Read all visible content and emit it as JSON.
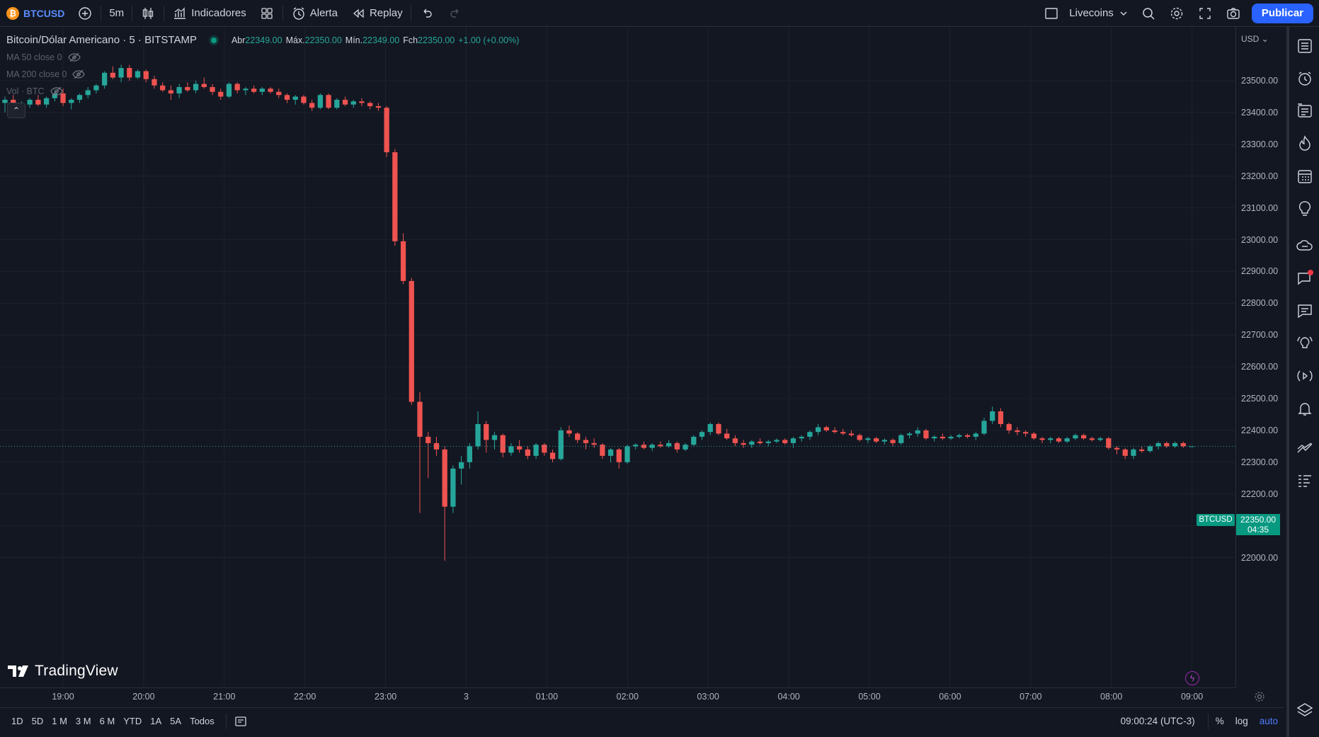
{
  "toolbar": {
    "symbol": "BTCUSD",
    "symbol_logo": "₿",
    "interval": "5m",
    "indicators_label": "Indicadores",
    "alert_label": "Alerta",
    "replay_label": "Replay",
    "layout_name": "Livecoins",
    "publish_label": "Publicar"
  },
  "legend": {
    "title": "Bitcoin/Dólar Americano · 5 · BITSTAMP",
    "open_label": "Abr",
    "open": "22349.00",
    "high_label": "Máx.",
    "high": "22350.00",
    "low_label": "Mín.",
    "low": "22349.00",
    "close_label": "Fch",
    "close": "22350.00",
    "change": "+1.00 (+0.00%)",
    "indicators": [
      "MA 50 close 0",
      "MA 200 close 0",
      "Vol · BTC"
    ]
  },
  "price_axis": {
    "currency": "USD",
    "ticks": [
      "23500.00",
      "23400.00",
      "23300.00",
      "23200.00",
      "23100.00",
      "23000.00",
      "22900.00",
      "22800.00",
      "22700.00",
      "22600.00",
      "22500.00",
      "22400.00",
      "22300.00",
      "22200.00",
      "22100.00",
      "22000.00"
    ],
    "current_symbol": "BTCUSD",
    "current_price": "22350.00",
    "countdown": "04:35"
  },
  "time_axis": {
    "ticks": [
      "19:00",
      "20:00",
      "21:00",
      "22:00",
      "23:00",
      "3",
      "01:00",
      "02:00",
      "03:00",
      "04:00",
      "05:00",
      "06:00",
      "07:00",
      "08:00",
      "09:00"
    ]
  },
  "bottom": {
    "ranges": [
      "1D",
      "5D",
      "1 M",
      "3 M",
      "6 M",
      "YTD",
      "1A",
      "5A",
      "Todos"
    ],
    "clock": "09:00:24 (UTC-3)",
    "percent": "%",
    "log": "log",
    "auto": "auto"
  },
  "branding": {
    "logo_text": "TradingView"
  },
  "colors": {
    "up": "#26a69a",
    "down": "#ef5350",
    "accent": "#2962ff",
    "background": "#131722",
    "grid": "#1e222d"
  },
  "chart_data": {
    "type": "candlestick",
    "symbol": "BTCUSD",
    "exchange": "BITSTAMP",
    "interval": "5",
    "ylim": [
      21950,
      23600
    ],
    "x_ticks": [
      "19:00",
      "20:00",
      "21:00",
      "22:00",
      "23:00",
      "3",
      "01:00",
      "02:00",
      "03:00",
      "04:00",
      "05:00",
      "06:00",
      "07:00",
      "08:00",
      "09:00"
    ],
    "candles": [
      [
        23430,
        23450,
        23400,
        23440
      ],
      [
        23440,
        23455,
        23405,
        23410
      ],
      [
        23410,
        23435,
        23390,
        23425
      ],
      [
        23425,
        23445,
        23415,
        23440
      ],
      [
        23440,
        23455,
        23420,
        23425
      ],
      [
        23425,
        23450,
        23415,
        23445
      ],
      [
        23445,
        23470,
        23435,
        23460
      ],
      [
        23460,
        23475,
        23420,
        23430
      ],
      [
        23430,
        23445,
        23410,
        23440
      ],
      [
        23440,
        23460,
        23430,
        23455
      ],
      [
        23455,
        23480,
        23445,
        23470
      ],
      [
        23470,
        23490,
        23460,
        23485
      ],
      [
        23485,
        23530,
        23475,
        23525
      ],
      [
        23525,
        23545,
        23505,
        23510
      ],
      [
        23510,
        23550,
        23495,
        23540
      ],
      [
        23540,
        23550,
        23500,
        23510
      ],
      [
        23510,
        23535,
        23505,
        23530
      ],
      [
        23530,
        23535,
        23495,
        23505
      ],
      [
        23505,
        23515,
        23475,
        23485
      ],
      [
        23485,
        23495,
        23465,
        23470
      ],
      [
        23470,
        23485,
        23440,
        23460
      ],
      [
        23460,
        23490,
        23445,
        23480
      ],
      [
        23480,
        23495,
        23465,
        23470
      ],
      [
        23470,
        23500,
        23460,
        23490
      ],
      [
        23490,
        23510,
        23475,
        23480
      ],
      [
        23480,
        23490,
        23455,
        23465
      ],
      [
        23465,
        23475,
        23440,
        23450
      ],
      [
        23450,
        23495,
        23445,
        23490
      ],
      [
        23490,
        23495,
        23460,
        23470
      ],
      [
        23470,
        23480,
        23455,
        23475
      ],
      [
        23475,
        23485,
        23460,
        23465
      ],
      [
        23465,
        23480,
        23455,
        23475
      ],
      [
        23475,
        23480,
        23460,
        23465
      ],
      [
        23465,
        23475,
        23445,
        23455
      ],
      [
        23455,
        23460,
        23430,
        23440
      ],
      [
        23440,
        23455,
        23425,
        23450
      ],
      [
        23450,
        23455,
        23425,
        23430
      ],
      [
        23430,
        23440,
        23405,
        23415
      ],
      [
        23415,
        23460,
        23410,
        23455
      ],
      [
        23455,
        23460,
        23410,
        23415
      ],
      [
        23415,
        23445,
        23410,
        23440
      ],
      [
        23440,
        23450,
        23420,
        23425
      ],
      [
        23425,
        23440,
        23415,
        23435
      ],
      [
        23435,
        23445,
        23420,
        23430
      ],
      [
        23430,
        23435,
        23410,
        23420
      ],
      [
        23420,
        23430,
        23405,
        23415
      ],
      [
        23415,
        23420,
        23260,
        23275
      ],
      [
        23275,
        23285,
        22980,
        22995
      ],
      [
        22995,
        23020,
        22860,
        22870
      ],
      [
        22870,
        22880,
        22480,
        22490
      ],
      [
        22490,
        22520,
        22140,
        22380
      ],
      [
        22380,
        22395,
        22250,
        22360
      ],
      [
        22360,
        22380,
        22320,
        22340
      ],
      [
        22340,
        22350,
        21990,
        22160
      ],
      [
        22160,
        22290,
        22140,
        22280
      ],
      [
        22280,
        22320,
        22230,
        22300
      ],
      [
        22300,
        22360,
        22280,
        22350
      ],
      [
        22350,
        22460,
        22340,
        22420
      ],
      [
        22420,
        22430,
        22330,
        22370
      ],
      [
        22370,
        22395,
        22340,
        22385
      ],
      [
        22385,
        22390,
        22315,
        22330
      ],
      [
        22330,
        22360,
        22320,
        22350
      ],
      [
        22350,
        22370,
        22330,
        22340
      ],
      [
        22340,
        22350,
        22310,
        22320
      ],
      [
        22320,
        22360,
        22310,
        22355
      ],
      [
        22355,
        22360,
        22320,
        22330
      ],
      [
        22330,
        22340,
        22300,
        22310
      ],
      [
        22310,
        22410,
        22305,
        22400
      ],
      [
        22400,
        22415,
        22380,
        22390
      ],
      [
        22390,
        22395,
        22360,
        22370
      ],
      [
        22370,
        22380,
        22340,
        22360
      ],
      [
        22360,
        22375,
        22345,
        22355
      ],
      [
        22355,
        22360,
        22310,
        22320
      ],
      [
        22320,
        22345,
        22300,
        22340
      ],
      [
        22340,
        22345,
        22280,
        22300
      ],
      [
        22300,
        22355,
        22295,
        22350
      ],
      [
        22350,
        22360,
        22340,
        22355
      ],
      [
        22355,
        22365,
        22340,
        22345
      ],
      [
        22345,
        22360,
        22335,
        22355
      ],
      [
        22355,
        22365,
        22345,
        22350
      ],
      [
        22350,
        22370,
        22345,
        22360
      ],
      [
        22360,
        22365,
        22330,
        22340
      ],
      [
        22340,
        22360,
        22335,
        22355
      ],
      [
        22355,
        22385,
        22350,
        22380
      ],
      [
        22380,
        22400,
        22370,
        22395
      ],
      [
        22395,
        22425,
        22385,
        22420
      ],
      [
        22420,
        22425,
        22385,
        22390
      ],
      [
        22390,
        22405,
        22370,
        22375
      ],
      [
        22375,
        22385,
        22350,
        22360
      ],
      [
        22360,
        22370,
        22345,
        22355
      ],
      [
        22355,
        22370,
        22345,
        22365
      ],
      [
        22365,
        22375,
        22355,
        22360
      ],
      [
        22360,
        22370,
        22350,
        22365
      ],
      [
        22365,
        22375,
        22360,
        22370
      ],
      [
        22370,
        22375,
        22355,
        22360
      ],
      [
        22360,
        22380,
        22345,
        22375
      ],
      [
        22375,
        22385,
        22365,
        22380
      ],
      [
        22380,
        22400,
        22370,
        22395
      ],
      [
        22395,
        22420,
        22385,
        22410
      ],
      [
        22410,
        22415,
        22395,
        22400
      ],
      [
        22400,
        22410,
        22390,
        22395
      ],
      [
        22395,
        22405,
        22385,
        22390
      ],
      [
        22390,
        22400,
        22380,
        22385
      ],
      [
        22385,
        22390,
        22365,
        22370
      ],
      [
        22370,
        22380,
        22360,
        22375
      ],
      [
        22375,
        22380,
        22360,
        22365
      ],
      [
        22365,
        22375,
        22355,
        22370
      ],
      [
        22370,
        22375,
        22350,
        22360
      ],
      [
        22360,
        22390,
        22355,
        22385
      ],
      [
        22385,
        22395,
        22375,
        22390
      ],
      [
        22390,
        22410,
        22380,
        22400
      ],
      [
        22400,
        22405,
        22370,
        22375
      ],
      [
        22375,
        22385,
        22365,
        22380
      ],
      [
        22380,
        22390,
        22370,
        22375
      ],
      [
        22375,
        22385,
        22370,
        22380
      ],
      [
        22380,
        22390,
        22375,
        22385
      ],
      [
        22385,
        22390,
        22375,
        22380
      ],
      [
        22380,
        22395,
        22370,
        22390
      ],
      [
        22390,
        22440,
        22385,
        22430
      ],
      [
        22430,
        22475,
        22420,
        22460
      ],
      [
        22460,
        22470,
        22410,
        22420
      ],
      [
        22420,
        22425,
        22390,
        22400
      ],
      [
        22400,
        22410,
        22385,
        22395
      ],
      [
        22395,
        22400,
        22380,
        22390
      ],
      [
        22390,
        22395,
        22370,
        22375
      ],
      [
        22375,
        22380,
        22360,
        22370
      ],
      [
        22370,
        22380,
        22360,
        22375
      ],
      [
        22375,
        22380,
        22360,
        22365
      ],
      [
        22365,
        22380,
        22360,
        22375
      ],
      [
        22375,
        22390,
        22370,
        22385
      ],
      [
        22385,
        22390,
        22370,
        22375
      ],
      [
        22375,
        22380,
        22365,
        22370
      ],
      [
        22370,
        22380,
        22365,
        22375
      ],
      [
        22375,
        22380,
        22340,
        22345
      ],
      [
        22345,
        22350,
        22325,
        22340
      ],
      [
        22340,
        22345,
        22310,
        22320
      ],
      [
        22320,
        22345,
        22310,
        22340
      ],
      [
        22340,
        22350,
        22330,
        22335
      ],
      [
        22335,
        22355,
        22330,
        22350
      ],
      [
        22350,
        22365,
        22340,
        22360
      ],
      [
        22360,
        22365,
        22345,
        22350
      ],
      [
        22350,
        22365,
        22345,
        22360
      ],
      [
        22360,
        22365,
        22345,
        22350
      ],
      [
        22349,
        22350,
        22349,
        22350
      ]
    ]
  }
}
